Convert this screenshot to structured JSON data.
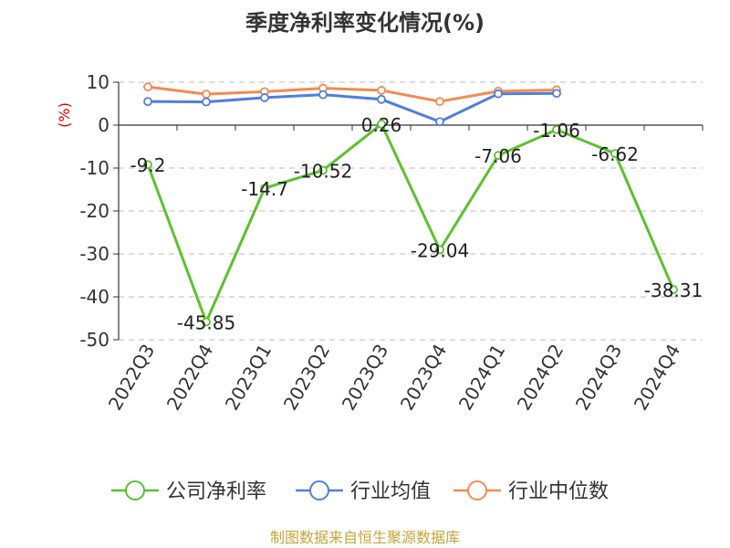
{
  "chart_data": {
    "type": "line",
    "title": "季度净利率变化情况(%)",
    "ylabel": "(%)",
    "categories": [
      "2022Q3",
      "2022Q4",
      "2023Q1",
      "2023Q2",
      "2023Q3",
      "2023Q4",
      "2024Q1",
      "2024Q2",
      "2024Q3",
      "2024Q4"
    ],
    "ylim": [
      -50,
      10
    ],
    "yticks": [
      10,
      0,
      -10,
      -20,
      -30,
      -40,
      -50
    ],
    "grid": true,
    "legend_position": "bottom",
    "series": [
      {
        "name": "公司净利率",
        "color": "#5bc12f",
        "values": [
          -9.2,
          -45.85,
          -14.7,
          -10.52,
          0.26,
          -29.04,
          -7.06,
          -1.06,
          -6.62,
          -38.31
        ],
        "labels": [
          "-9.2",
          "-45.85",
          "-14.7",
          "-10.52",
          "0.26",
          "-29.04",
          "-7.06",
          "-1.06",
          "-6.62",
          "-38.31"
        ]
      },
      {
        "name": "行业均值",
        "color": "#4f7fdc",
        "values": [
          5.5,
          5.4,
          6.4,
          7.1,
          6.0,
          0.8,
          7.3,
          7.4,
          null,
          null
        ]
      },
      {
        "name": "行业中位数",
        "color": "#f28b54",
        "values": [
          8.9,
          7.2,
          7.8,
          8.6,
          8.1,
          5.5,
          7.9,
          8.2,
          null,
          null
        ]
      }
    ]
  },
  "source": "制图数据来自恒生聚源数据库"
}
